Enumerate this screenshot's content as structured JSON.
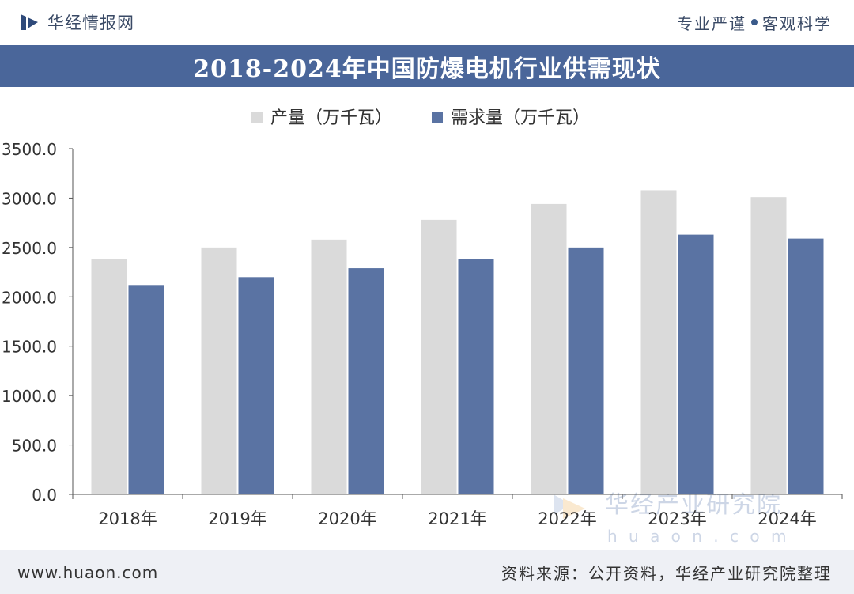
{
  "header": {
    "site_name": "华经情报网",
    "slogan_left": "专业严谨",
    "slogan_right": "客观科学"
  },
  "watermark": {
    "name": "华经产业研究院",
    "url": "www.huaon.com"
  },
  "footer": {
    "site_url": "www.huaon.com",
    "source": "资料来源：公开资料，华经产业研究院整理"
  },
  "colors": {
    "title_bg": "#4a669a",
    "production": "#dadada",
    "demand": "#5a73a3"
  },
  "chart_data": {
    "type": "bar",
    "title": "2018-2024年中国防爆电机行业供需现状",
    "categories": [
      "2018年",
      "2019年",
      "2020年",
      "2021年",
      "2022年",
      "2023年",
      "2024年"
    ],
    "series": [
      {
        "name": "产量（万千瓦）",
        "values": [
          2380,
          2500,
          2580,
          2780,
          2940,
          3080,
          3010
        ]
      },
      {
        "name": "需求量（万千瓦）",
        "values": [
          2120,
          2200,
          2290,
          2380,
          2500,
          2630,
          2590
        ]
      }
    ],
    "yticks": [
      "0.0",
      "500.0",
      "1000.0",
      "1500.0",
      "2000.0",
      "2500.0",
      "3000.0",
      "3500.0"
    ],
    "ylim": [
      0,
      3500
    ],
    "xlabel": "",
    "ylabel": "",
    "legend_position": "top-center",
    "grid": false
  }
}
